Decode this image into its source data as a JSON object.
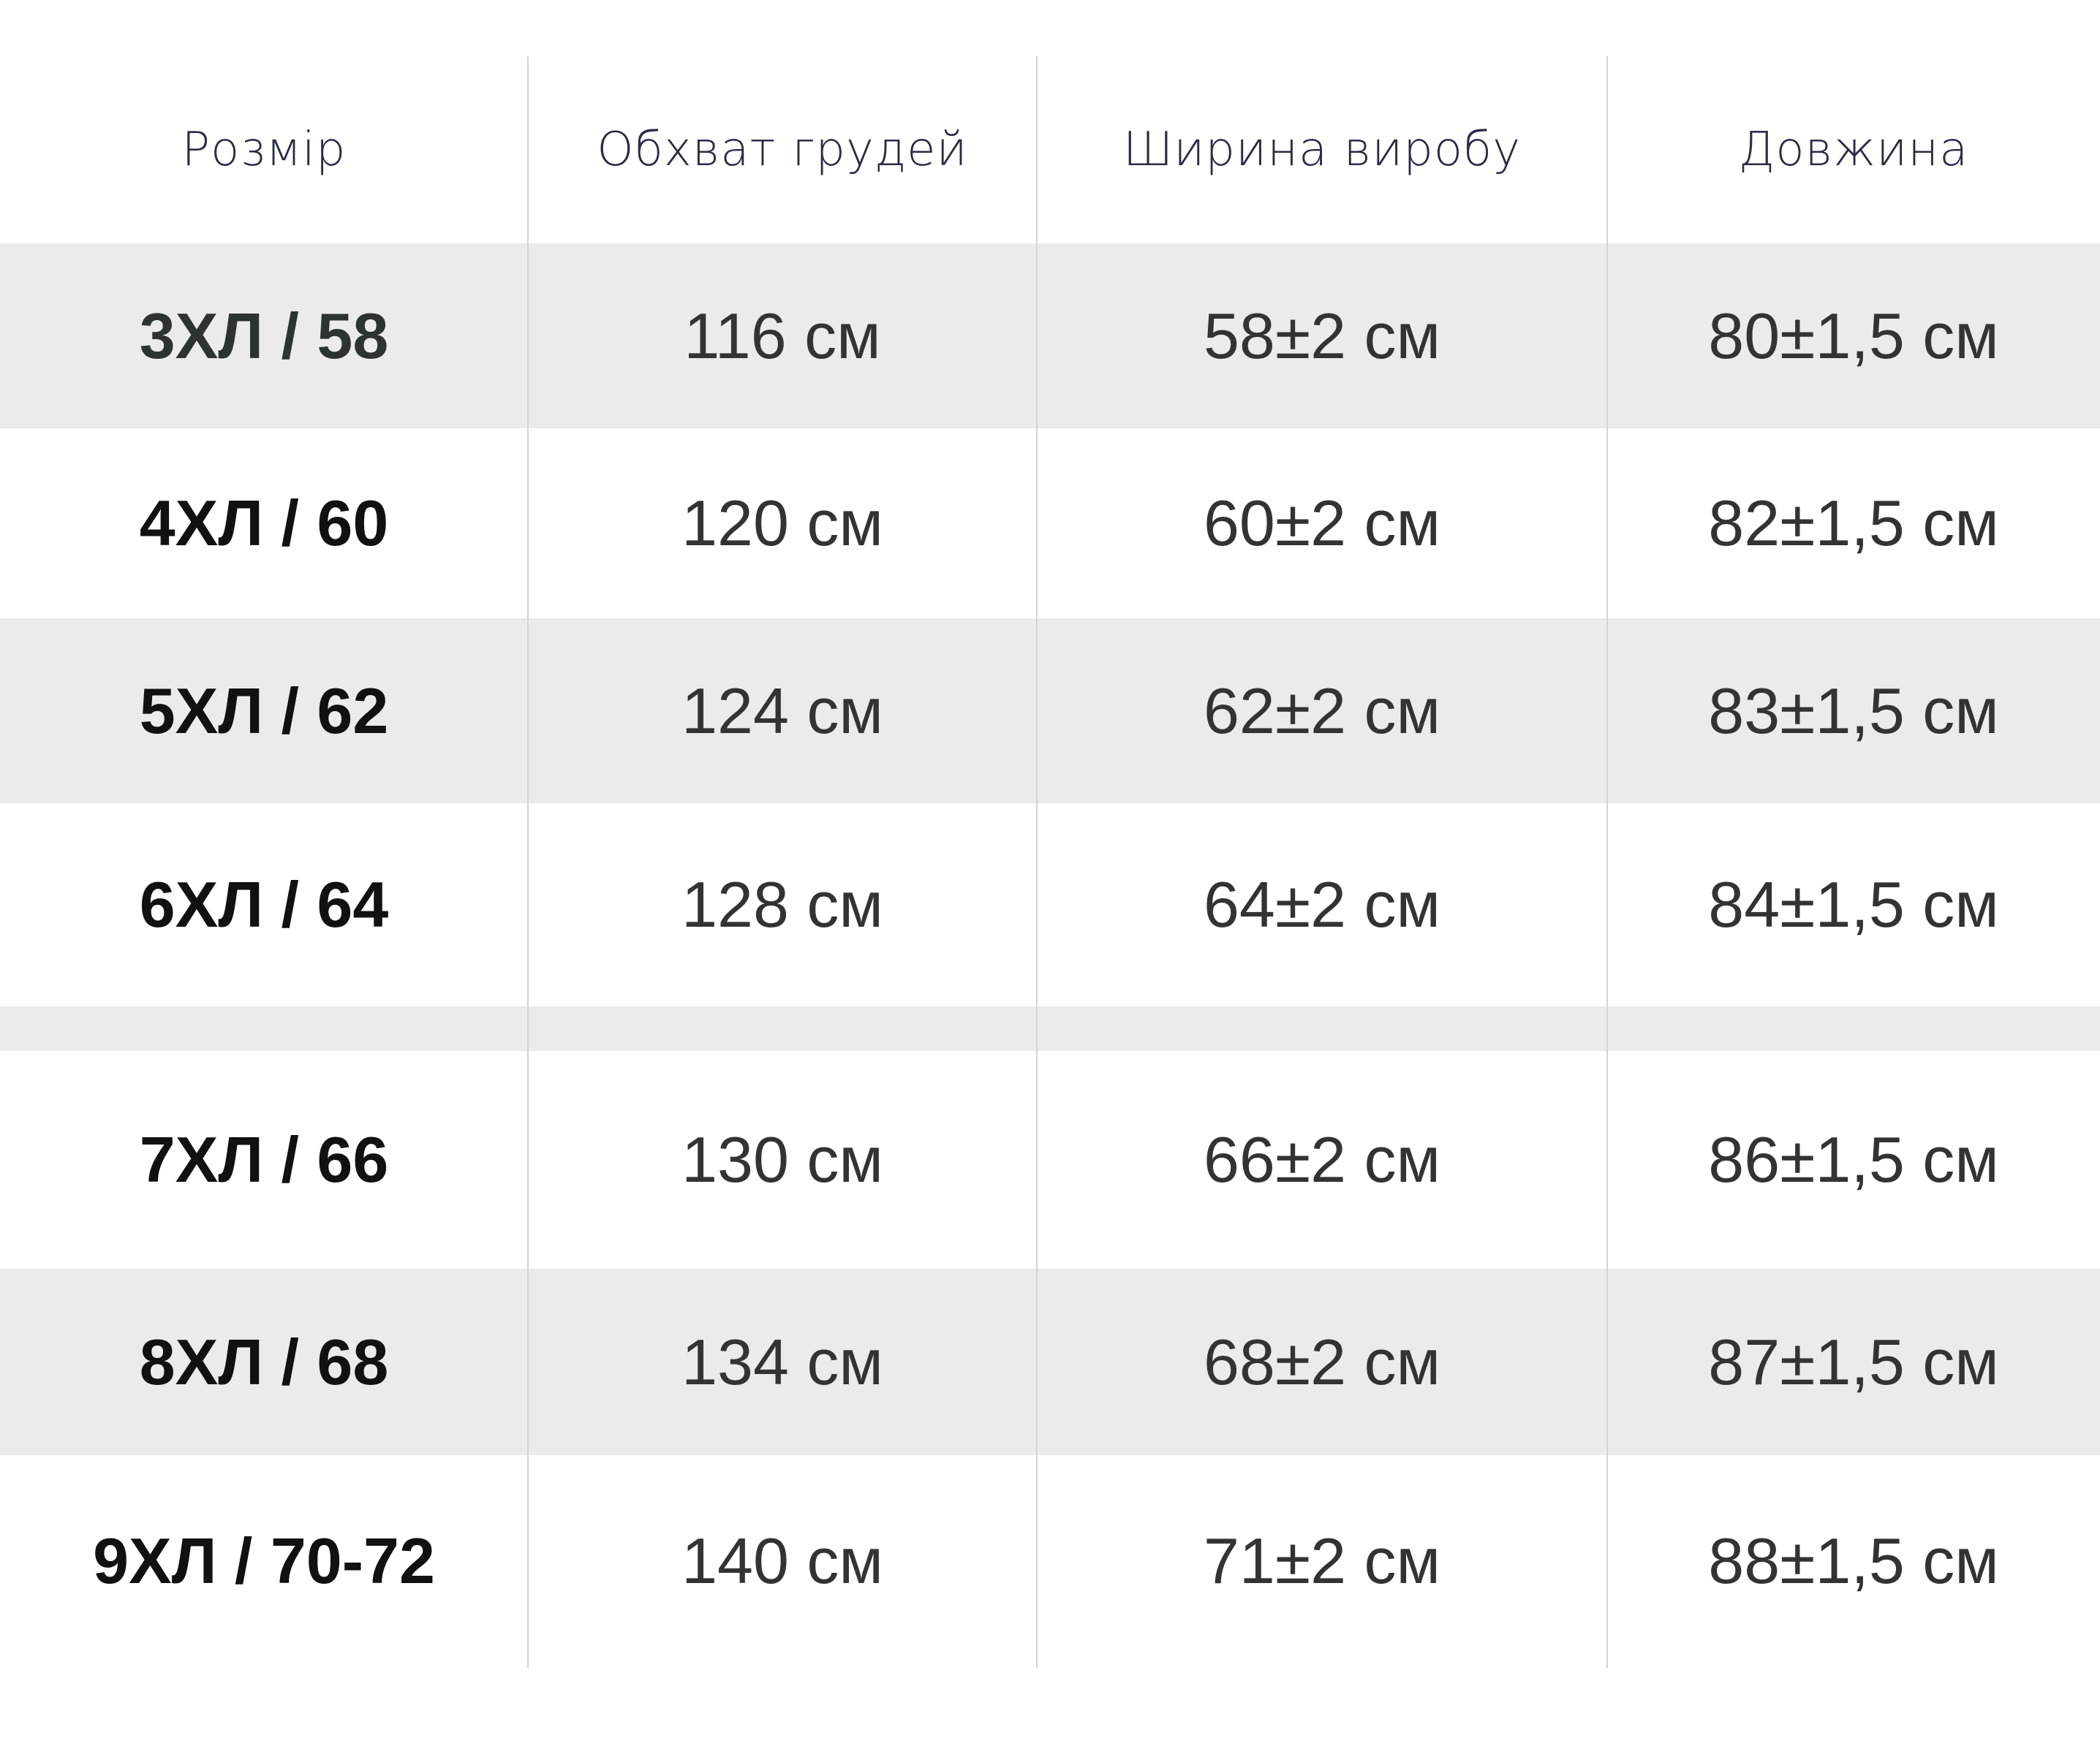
{
  "table": {
    "headers": [
      "Розмір",
      "Обхват грудей",
      "Ширина виробу",
      "Довжина"
    ],
    "rows": [
      [
        "3ХЛ / 58",
        "116 см",
        "58±2 см",
        "80±1,5 см"
      ],
      [
        "4ХЛ / 60",
        "120 см",
        "60±2 см",
        "82±1,5 см"
      ],
      [
        "5ХЛ / 62",
        "124 см",
        "62±2 см",
        "83±1,5 см"
      ],
      [
        "6ХЛ / 64",
        "128 см",
        "64±2 см",
        "84±1,5 см"
      ],
      [
        "7ХЛ / 66",
        "130 см",
        "66±2 см",
        "86±1,5 см"
      ],
      [
        "8ХЛ / 68",
        "134 см",
        "68±2 см",
        "87±1,5 см"
      ],
      [
        "9ХЛ / 70-72",
        "140 см",
        "71±2 см",
        "88±1,5 см"
      ]
    ]
  },
  "colors": {
    "band": "#ebebeb",
    "header_text": "#2a2b45",
    "value_text": "#333333"
  }
}
